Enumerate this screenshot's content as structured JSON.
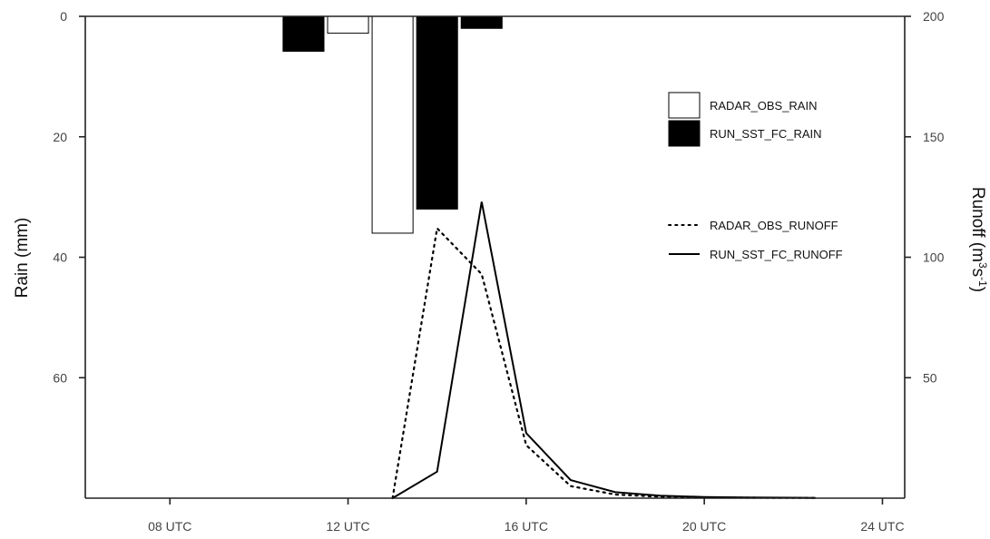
{
  "chart_data": {
    "type": "bar+line",
    "x_axis": {
      "ticks": [
        8,
        12,
        16,
        20,
        24
      ],
      "tick_labels": [
        "08 UTC",
        "12 UTC",
        "16 UTC",
        "20 UTC",
        "24 UTC"
      ],
      "range": [
        6.1,
        24.5
      ]
    },
    "y_left": {
      "label": "Rain (mm)",
      "ticks": [
        0,
        20,
        40,
        60
      ],
      "tick_labels": [
        "0",
        "20",
        "40",
        "60"
      ],
      "range": [
        0,
        80
      ],
      "inverted": true
    },
    "y_right": {
      "label": "Runoff (m",
      "label_sup1": "3",
      "label_mid": "s",
      "label_sup2": "-1",
      "label_end": ")",
      "ticks": [
        50,
        100,
        150,
        200
      ],
      "tick_labels": [
        "50",
        "100",
        "150",
        "200"
      ],
      "range": [
        0,
        200
      ]
    },
    "rain_series": [
      {
        "name": "RADAR_OBS_RAIN",
        "fill": "#ffffff",
        "stroke": "#000000",
        "bars": [
          {
            "x0": 11.5,
            "x1": 12.5,
            "value": 2.8
          },
          {
            "x0": 12.5,
            "x1": 13.5,
            "value": 36.0
          }
        ]
      },
      {
        "name": "RUN_SST_FC_RAIN",
        "fill": "#000000",
        "stroke": "#000000",
        "bars": [
          {
            "x0": 10.5,
            "x1": 11.5,
            "value": 5.8
          },
          {
            "x0": 13.5,
            "x1": 14.5,
            "value": 32.0
          },
          {
            "x0": 14.5,
            "x1": 15.5,
            "value": 2.0
          }
        ]
      }
    ],
    "runoff_series": [
      {
        "name": "RADAR_OBS_RUNOFF",
        "style": "dotted",
        "x": [
          13,
          14,
          15,
          16,
          17,
          18,
          19,
          20,
          21,
          22,
          22.5
        ],
        "y": [
          0,
          112,
          93,
          22,
          5,
          1.5,
          0.6,
          0.3,
          0.2,
          0.1,
          0.1
        ]
      },
      {
        "name": "RUN_SST_FC_RUNOFF",
        "style": "solid",
        "x": [
          13,
          14,
          15,
          16,
          17,
          18,
          19,
          20,
          21,
          22,
          22.5
        ],
        "y": [
          0,
          11,
          123,
          27,
          7.5,
          2.5,
          1.0,
          0.5,
          0.3,
          0.2,
          0.1
        ]
      }
    ],
    "legend": {
      "placement": "right",
      "rain_entries": [
        "RADAR_OBS_RAIN",
        "RUN_SST_FC_RAIN"
      ],
      "runoff_entries": [
        "RADAR_OBS_RUNOFF",
        "RUN_SST_FC_RUNOFF"
      ]
    },
    "grid": false
  }
}
